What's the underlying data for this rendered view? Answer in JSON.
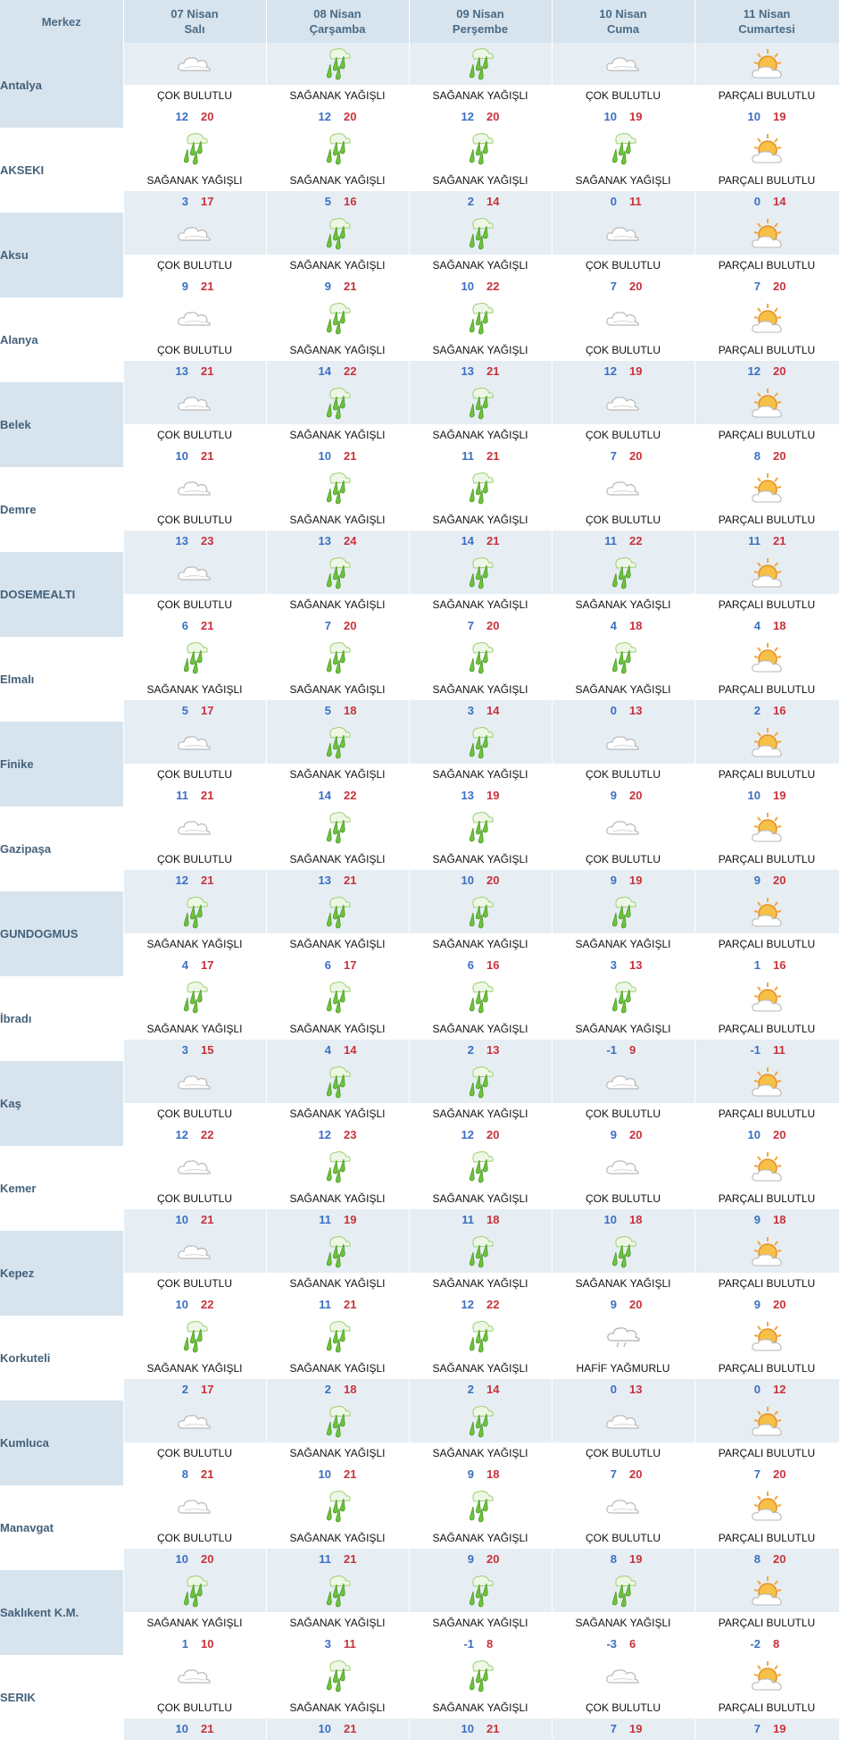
{
  "header": {
    "city_col": "Merkez",
    "days": [
      {
        "date": "07 Nisan",
        "weekday": "Salı"
      },
      {
        "date": "08 Nisan",
        "weekday": "Çarşamba"
      },
      {
        "date": "09 Nisan",
        "weekday": "Perşembe"
      },
      {
        "date": "10 Nisan",
        "weekday": "Cuma"
      },
      {
        "date": "11 Nisan",
        "weekday": "Cumartesi"
      }
    ]
  },
  "icon_map": {
    "ÇOK BULUTLU": "cloud-icon",
    "SAĞANAK YAĞIŞLI": "shower-rain-icon",
    "PARÇALI BULUTLU": "sun-behind-cloud-icon",
    "HAFİF YAĞMURLU": "light-rain-icon"
  },
  "colors": {
    "header_bg": "#d7e4ee",
    "header_text": "#4a6b86",
    "min_temp": "#3a6fc2",
    "max_temp": "#c8323a"
  },
  "rows": [
    {
      "city": "Antalya",
      "days": [
        {
          "cond": "ÇOK BULUTLU",
          "min": "12",
          "max": "20"
        },
        {
          "cond": "SAĞANAK YAĞIŞLI",
          "min": "12",
          "max": "20"
        },
        {
          "cond": "SAĞANAK YAĞIŞLI",
          "min": "12",
          "max": "20"
        },
        {
          "cond": "ÇOK BULUTLU",
          "min": "10",
          "max": "19"
        },
        {
          "cond": "PARÇALI BULUTLU",
          "min": "10",
          "max": "19"
        }
      ]
    },
    {
      "city": "AKSEKI",
      "days": [
        {
          "cond": "SAĞANAK YAĞIŞLI",
          "min": "3",
          "max": "17"
        },
        {
          "cond": "SAĞANAK YAĞIŞLI",
          "min": "5",
          "max": "16"
        },
        {
          "cond": "SAĞANAK YAĞIŞLI",
          "min": "2",
          "max": "14"
        },
        {
          "cond": "SAĞANAK YAĞIŞLI",
          "min": "0",
          "max": "11"
        },
        {
          "cond": "PARÇALI BULUTLU",
          "min": "0",
          "max": "14"
        }
      ]
    },
    {
      "city": "Aksu",
      "days": [
        {
          "cond": "ÇOK BULUTLU",
          "min": "9",
          "max": "21"
        },
        {
          "cond": "SAĞANAK YAĞIŞLI",
          "min": "9",
          "max": "21"
        },
        {
          "cond": "SAĞANAK YAĞIŞLI",
          "min": "10",
          "max": "22"
        },
        {
          "cond": "ÇOK BULUTLU",
          "min": "7",
          "max": "20"
        },
        {
          "cond": "PARÇALI BULUTLU",
          "min": "7",
          "max": "20"
        }
      ]
    },
    {
      "city": "Alanya",
      "days": [
        {
          "cond": "ÇOK BULUTLU",
          "min": "13",
          "max": "21"
        },
        {
          "cond": "SAĞANAK YAĞIŞLI",
          "min": "14",
          "max": "22"
        },
        {
          "cond": "SAĞANAK YAĞIŞLI",
          "min": "13",
          "max": "21"
        },
        {
          "cond": "ÇOK BULUTLU",
          "min": "12",
          "max": "19"
        },
        {
          "cond": "PARÇALI BULUTLU",
          "min": "12",
          "max": "20"
        }
      ]
    },
    {
      "city": "Belek",
      "days": [
        {
          "cond": "ÇOK BULUTLU",
          "min": "10",
          "max": "21"
        },
        {
          "cond": "SAĞANAK YAĞIŞLI",
          "min": "10",
          "max": "21"
        },
        {
          "cond": "SAĞANAK YAĞIŞLI",
          "min": "11",
          "max": "21"
        },
        {
          "cond": "ÇOK BULUTLU",
          "min": "7",
          "max": "20"
        },
        {
          "cond": "PARÇALI BULUTLU",
          "min": "8",
          "max": "20"
        }
      ]
    },
    {
      "city": "Demre",
      "days": [
        {
          "cond": "ÇOK BULUTLU",
          "min": "13",
          "max": "23"
        },
        {
          "cond": "SAĞANAK YAĞIŞLI",
          "min": "13",
          "max": "24"
        },
        {
          "cond": "SAĞANAK YAĞIŞLI",
          "min": "14",
          "max": "21"
        },
        {
          "cond": "ÇOK BULUTLU",
          "min": "11",
          "max": "22"
        },
        {
          "cond": "PARÇALI BULUTLU",
          "min": "11",
          "max": "21"
        }
      ]
    },
    {
      "city": "DOSEMEALTI",
      "days": [
        {
          "cond": "ÇOK BULUTLU",
          "min": "6",
          "max": "21"
        },
        {
          "cond": "SAĞANAK YAĞIŞLI",
          "min": "7",
          "max": "20"
        },
        {
          "cond": "SAĞANAK YAĞIŞLI",
          "min": "7",
          "max": "20"
        },
        {
          "cond": "SAĞANAK YAĞIŞLI",
          "min": "4",
          "max": "18"
        },
        {
          "cond": "PARÇALI BULUTLU",
          "min": "4",
          "max": "18"
        }
      ]
    },
    {
      "city": "Elmalı",
      "days": [
        {
          "cond": "SAĞANAK YAĞIŞLI",
          "min": "5",
          "max": "17"
        },
        {
          "cond": "SAĞANAK YAĞIŞLI",
          "min": "5",
          "max": "18"
        },
        {
          "cond": "SAĞANAK YAĞIŞLI",
          "min": "3",
          "max": "14"
        },
        {
          "cond": "SAĞANAK YAĞIŞLI",
          "min": "0",
          "max": "13"
        },
        {
          "cond": "PARÇALI BULUTLU",
          "min": "2",
          "max": "16"
        }
      ]
    },
    {
      "city": "Finike",
      "days": [
        {
          "cond": "ÇOK BULUTLU",
          "min": "11",
          "max": "21"
        },
        {
          "cond": "SAĞANAK YAĞIŞLI",
          "min": "14",
          "max": "22"
        },
        {
          "cond": "SAĞANAK YAĞIŞLI",
          "min": "13",
          "max": "19"
        },
        {
          "cond": "ÇOK BULUTLU",
          "min": "9",
          "max": "20"
        },
        {
          "cond": "PARÇALI BULUTLU",
          "min": "10",
          "max": "19"
        }
      ]
    },
    {
      "city": "Gazipaşa",
      "days": [
        {
          "cond": "ÇOK BULUTLU",
          "min": "12",
          "max": "21"
        },
        {
          "cond": "SAĞANAK YAĞIŞLI",
          "min": "13",
          "max": "21"
        },
        {
          "cond": "SAĞANAK YAĞIŞLI",
          "min": "10",
          "max": "20"
        },
        {
          "cond": "ÇOK BULUTLU",
          "min": "9",
          "max": "19"
        },
        {
          "cond": "PARÇALI BULUTLU",
          "min": "9",
          "max": "20"
        }
      ]
    },
    {
      "city": "GUNDOGMUS",
      "days": [
        {
          "cond": "SAĞANAK YAĞIŞLI",
          "min": "4",
          "max": "17"
        },
        {
          "cond": "SAĞANAK YAĞIŞLI",
          "min": "6",
          "max": "17"
        },
        {
          "cond": "SAĞANAK YAĞIŞLI",
          "min": "6",
          "max": "16"
        },
        {
          "cond": "SAĞANAK YAĞIŞLI",
          "min": "3",
          "max": "13"
        },
        {
          "cond": "PARÇALI BULUTLU",
          "min": "1",
          "max": "16"
        }
      ]
    },
    {
      "city": "İbradı",
      "days": [
        {
          "cond": "SAĞANAK YAĞIŞLI",
          "min": "3",
          "max": "15"
        },
        {
          "cond": "SAĞANAK YAĞIŞLI",
          "min": "4",
          "max": "14"
        },
        {
          "cond": "SAĞANAK YAĞIŞLI",
          "min": "2",
          "max": "13"
        },
        {
          "cond": "SAĞANAK YAĞIŞLI",
          "min": "-1",
          "max": "9"
        },
        {
          "cond": "PARÇALI BULUTLU",
          "min": "-1",
          "max": "11"
        }
      ]
    },
    {
      "city": "Kaş",
      "days": [
        {
          "cond": "ÇOK BULUTLU",
          "min": "12",
          "max": "22"
        },
        {
          "cond": "SAĞANAK YAĞIŞLI",
          "min": "12",
          "max": "23"
        },
        {
          "cond": "SAĞANAK YAĞIŞLI",
          "min": "12",
          "max": "20"
        },
        {
          "cond": "ÇOK BULUTLU",
          "min": "9",
          "max": "20"
        },
        {
          "cond": "PARÇALI BULUTLU",
          "min": "10",
          "max": "20"
        }
      ]
    },
    {
      "city": "Kemer",
      "days": [
        {
          "cond": "ÇOK BULUTLU",
          "min": "10",
          "max": "21"
        },
        {
          "cond": "SAĞANAK YAĞIŞLI",
          "min": "11",
          "max": "19"
        },
        {
          "cond": "SAĞANAK YAĞIŞLI",
          "min": "11",
          "max": "18"
        },
        {
          "cond": "ÇOK BULUTLU",
          "min": "10",
          "max": "18"
        },
        {
          "cond": "PARÇALI BULUTLU",
          "min": "9",
          "max": "18"
        }
      ]
    },
    {
      "city": "Kepez",
      "days": [
        {
          "cond": "ÇOK BULUTLU",
          "min": "10",
          "max": "22"
        },
        {
          "cond": "SAĞANAK YAĞIŞLI",
          "min": "11",
          "max": "21"
        },
        {
          "cond": "SAĞANAK YAĞIŞLI",
          "min": "12",
          "max": "22"
        },
        {
          "cond": "SAĞANAK YAĞIŞLI",
          "min": "9",
          "max": "20"
        },
        {
          "cond": "PARÇALI BULUTLU",
          "min": "9",
          "max": "20"
        }
      ]
    },
    {
      "city": "Korkuteli",
      "days": [
        {
          "cond": "SAĞANAK YAĞIŞLI",
          "min": "2",
          "max": "17"
        },
        {
          "cond": "SAĞANAK YAĞIŞLI",
          "min": "2",
          "max": "18"
        },
        {
          "cond": "SAĞANAK YAĞIŞLI",
          "min": "2",
          "max": "14"
        },
        {
          "cond": "HAFİF YAĞMURLU",
          "min": "0",
          "max": "13"
        },
        {
          "cond": "PARÇALI BULUTLU",
          "min": "0",
          "max": "12"
        }
      ]
    },
    {
      "city": "Kumluca",
      "days": [
        {
          "cond": "ÇOK BULUTLU",
          "min": "8",
          "max": "21"
        },
        {
          "cond": "SAĞANAK YAĞIŞLI",
          "min": "10",
          "max": "21"
        },
        {
          "cond": "SAĞANAK YAĞIŞLI",
          "min": "9",
          "max": "18"
        },
        {
          "cond": "ÇOK BULUTLU",
          "min": "7",
          "max": "20"
        },
        {
          "cond": "PARÇALI BULUTLU",
          "min": "7",
          "max": "20"
        }
      ]
    },
    {
      "city": "Manavgat",
      "days": [
        {
          "cond": "ÇOK BULUTLU",
          "min": "10",
          "max": "20"
        },
        {
          "cond": "SAĞANAK YAĞIŞLI",
          "min": "11",
          "max": "21"
        },
        {
          "cond": "SAĞANAK YAĞIŞLI",
          "min": "9",
          "max": "20"
        },
        {
          "cond": "ÇOK BULUTLU",
          "min": "8",
          "max": "19"
        },
        {
          "cond": "PARÇALI BULUTLU",
          "min": "8",
          "max": "20"
        }
      ]
    },
    {
      "city": "Saklıkent K.M.",
      "days": [
        {
          "cond": "SAĞANAK YAĞIŞLI",
          "min": "1",
          "max": "10"
        },
        {
          "cond": "SAĞANAK YAĞIŞLI",
          "min": "3",
          "max": "11"
        },
        {
          "cond": "SAĞANAK YAĞIŞLI",
          "min": "-1",
          "max": "8"
        },
        {
          "cond": "SAĞANAK YAĞIŞLI",
          "min": "-3",
          "max": "6"
        },
        {
          "cond": "PARÇALI BULUTLU",
          "min": "-2",
          "max": "8"
        }
      ]
    },
    {
      "city": "SERIK",
      "days": [
        {
          "cond": "ÇOK BULUTLU",
          "min": "10",
          "max": "21"
        },
        {
          "cond": "SAĞANAK YAĞIŞLI",
          "min": "10",
          "max": "21"
        },
        {
          "cond": "SAĞANAK YAĞIŞLI",
          "min": "10",
          "max": "21"
        },
        {
          "cond": "ÇOK BULUTLU",
          "min": "7",
          "max": "19"
        },
        {
          "cond": "PARÇALI BULUTLU",
          "min": "7",
          "max": "19"
        }
      ]
    }
  ]
}
